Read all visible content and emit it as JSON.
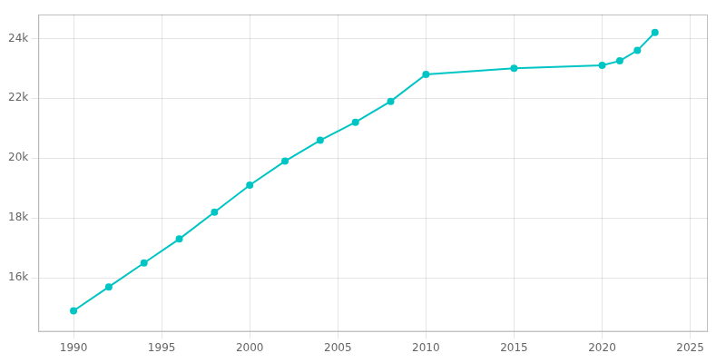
{
  "chart_data": {
    "type": "line",
    "x": [
      1990,
      1992,
      1994,
      1996,
      1998,
      2000,
      2002,
      2004,
      2006,
      2008,
      2010,
      2015,
      2020,
      2021,
      2022,
      2023
    ],
    "values": [
      14900,
      15700,
      16500,
      17300,
      18200,
      19100,
      19900,
      20600,
      21200,
      21900,
      22800,
      23000,
      23100,
      23250,
      23600,
      24200
    ],
    "color": "#00C5C5",
    "marker": "circle",
    "xlim": [
      1988,
      2026
    ],
    "xticks": [
      1990,
      1995,
      2000,
      2005,
      2010,
      2015,
      2020,
      2025
    ],
    "ylim": [
      14200,
      24800
    ],
    "yticks": [
      {
        "value": 16000,
        "label": "16k"
      },
      {
        "value": 18000,
        "label": "18k"
      },
      {
        "value": 20000,
        "label": "20k"
      },
      {
        "value": 22000,
        "label": "22k"
      },
      {
        "value": 24000,
        "label": "24k"
      }
    ],
    "grid": true
  }
}
